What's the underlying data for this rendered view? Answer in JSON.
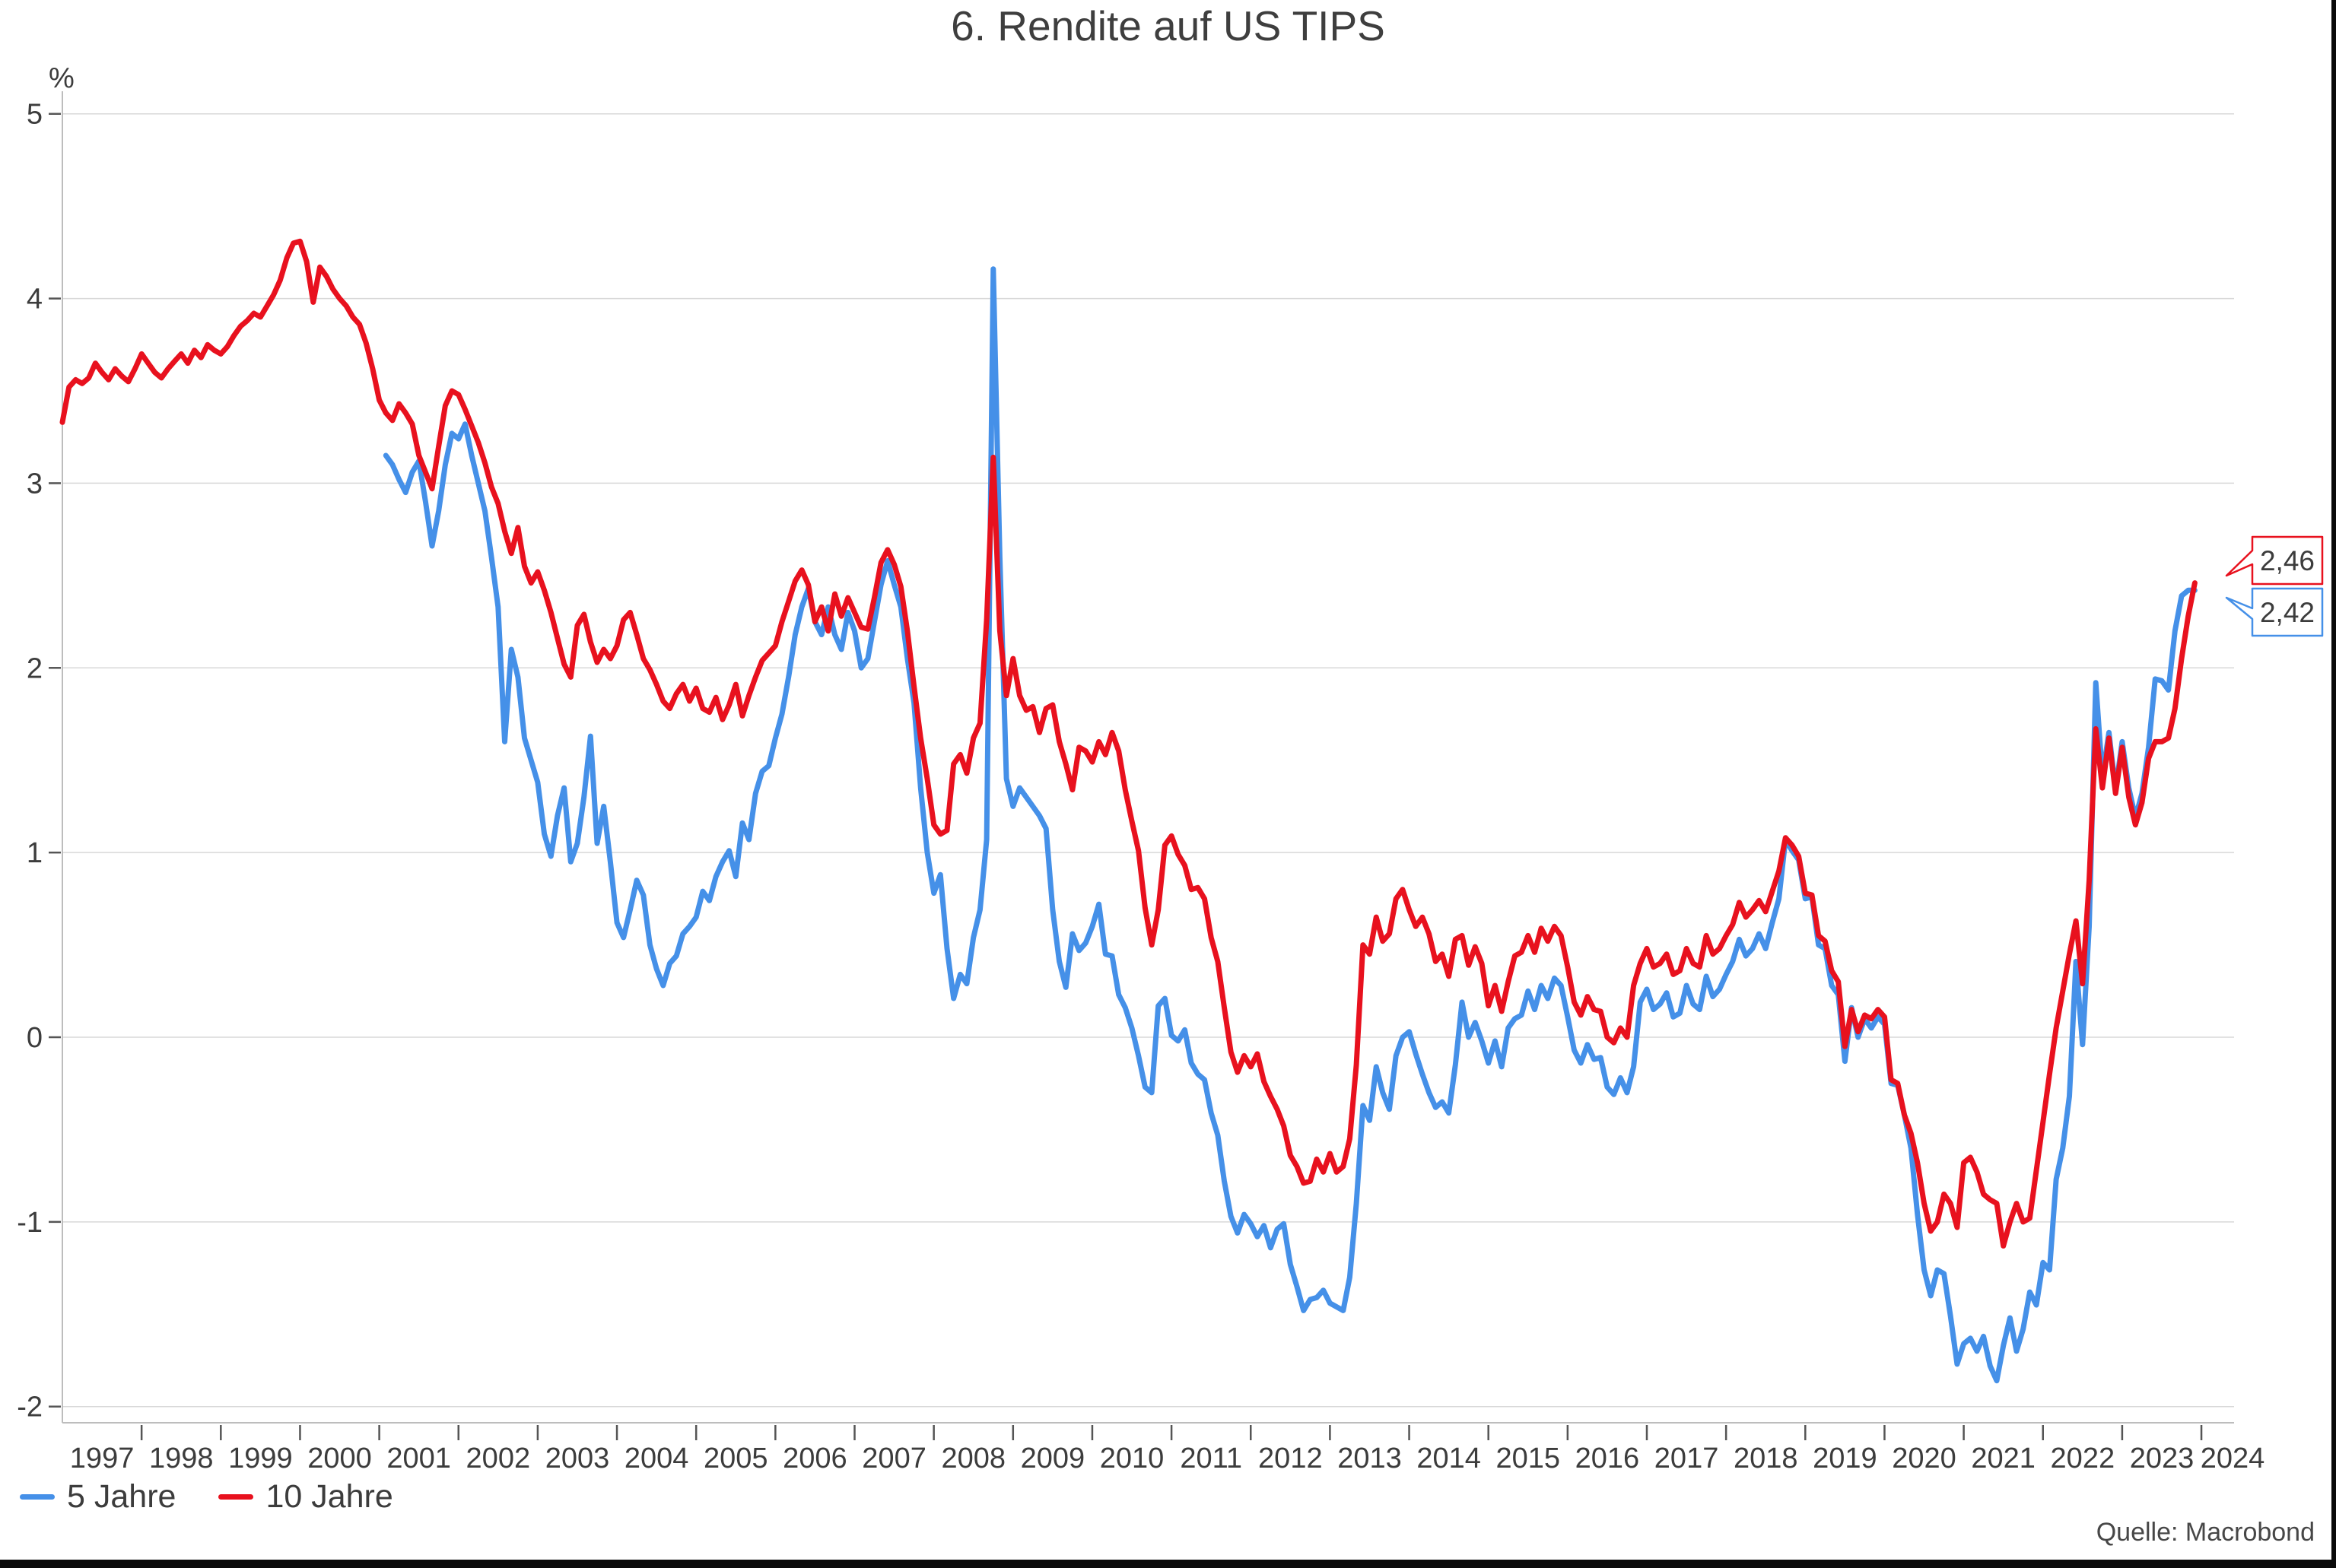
{
  "title": "6. Rendite auf US TIPS",
  "unit_label": "%",
  "source": "Quelle: Macrobond",
  "colors": {
    "blue": "#4590e8",
    "red": "#e8111e",
    "grid": "#d8d8d8",
    "axis": "#bdbdbd",
    "tick": "#555555",
    "text": "#3c3c3c"
  },
  "legend": {
    "items": [
      {
        "label": "5 Jahre",
        "color": "#4590e8"
      },
      {
        "label": "10 Jahre",
        "color": "#e8111e"
      }
    ]
  },
  "end_labels": [
    {
      "series": "10 Jahre",
      "text": "2,46",
      "color": "#e8111e"
    },
    {
      "series": "5 Jahre",
      "text": "2,42",
      "color": "#4590e8"
    }
  ],
  "chart_data": {
    "type": "line",
    "title": "6. Rendite auf US TIPS",
    "ylabel": "%",
    "ylim": [
      -2.1,
      5
    ],
    "xlim": [
      1997,
      2024.4
    ],
    "grid": "horizontal",
    "legend_position": "bottom-left",
    "y_ticks": [
      5,
      4,
      3,
      2,
      1,
      0,
      -1,
      -2
    ],
    "x_tick_years": [
      1997,
      1998,
      1999,
      2000,
      2001,
      2002,
      2003,
      2004,
      2005,
      2006,
      2007,
      2008,
      2009,
      2010,
      2011,
      2012,
      2013,
      2014,
      2015,
      2016,
      2017,
      2018,
      2019,
      2020,
      2021,
      2022,
      2023,
      2024
    ],
    "series": [
      {
        "name": "5 Jahre",
        "color": "#4590e8",
        "start_year": 2001,
        "start_month": 2,
        "end_value_label": "2,42",
        "monthly_values": [
          3.15,
          3.1,
          3.02,
          2.95,
          3.06,
          3.12,
          2.9,
          2.66,
          2.85,
          3.1,
          3.27,
          3.24,
          3.32,
          3.15,
          3.0,
          2.85,
          2.6,
          2.33,
          1.6,
          2.1,
          1.95,
          1.62,
          1.5,
          1.38,
          1.1,
          0.98,
          1.2,
          1.35,
          0.95,
          1.05,
          1.3,
          1.63,
          1.05,
          1.25,
          0.95,
          0.62,
          0.54,
          0.69,
          0.85,
          0.77,
          0.5,
          0.37,
          0.28,
          0.4,
          0.44,
          0.56,
          0.6,
          0.65,
          0.79,
          0.74,
          0.87,
          0.95,
          1.01,
          0.87,
          1.16,
          1.07,
          1.32,
          1.44,
          1.47,
          1.62,
          1.75,
          1.95,
          2.18,
          2.33,
          2.43,
          2.25,
          2.18,
          2.33,
          2.18,
          2.1,
          2.3,
          2.2,
          2.0,
          2.05,
          2.25,
          2.45,
          2.58,
          2.45,
          2.33,
          2.05,
          1.81,
          1.35,
          1.0,
          0.78,
          0.88,
          0.48,
          0.21,
          0.34,
          0.29,
          0.54,
          0.69,
          1.07,
          4.16,
          2.6,
          1.4,
          1.25,
          1.35,
          1.3,
          1.25,
          1.2,
          1.13,
          0.69,
          0.41,
          0.27,
          0.56,
          0.47,
          0.51,
          0.6,
          0.72,
          0.45,
          0.44,
          0.23,
          0.16,
          0.05,
          -0.1,
          -0.27,
          -0.3,
          0.17,
          0.21,
          0.01,
          -0.02,
          0.04,
          -0.14,
          -0.2,
          -0.23,
          -0.41,
          -0.53,
          -0.78,
          -0.97,
          -1.06,
          -0.96,
          -1.01,
          -1.08,
          -1.02,
          -1.14,
          -1.04,
          -1.01,
          -1.23,
          -1.35,
          -1.48,
          -1.42,
          -1.41,
          -1.37,
          -1.44,
          -1.46,
          -1.48,
          -1.3,
          -0.9,
          -0.37,
          -0.45,
          -0.16,
          -0.3,
          -0.39,
          -0.1,
          0.0,
          0.03,
          -0.09,
          -0.2,
          -0.3,
          -0.38,
          -0.35,
          -0.41,
          -0.15,
          0.19,
          0.0,
          0.08,
          -0.02,
          -0.14,
          -0.02,
          -0.16,
          0.05,
          0.1,
          0.12,
          0.25,
          0.15,
          0.28,
          0.21,
          0.32,
          0.28,
          0.11,
          -0.07,
          -0.14,
          -0.04,
          -0.12,
          -0.11,
          -0.27,
          -0.31,
          -0.22,
          -0.3,
          -0.16,
          0.19,
          0.26,
          0.15,
          0.18,
          0.24,
          0.11,
          0.13,
          0.28,
          0.18,
          0.15,
          0.33,
          0.22,
          0.26,
          0.34,
          0.41,
          0.53,
          0.44,
          0.48,
          0.56,
          0.48,
          0.62,
          0.75,
          1.07,
          1.01,
          0.96,
          0.75,
          0.76,
          0.5,
          0.48,
          0.28,
          0.23,
          -0.13,
          0.16,
          0.0,
          0.1,
          0.05,
          0.11,
          0.07,
          -0.25,
          -0.26,
          -0.42,
          -0.6,
          -0.96,
          -1.26,
          -1.4,
          -1.26,
          -1.28,
          -1.51,
          -1.77,
          -1.66,
          -1.63,
          -1.7,
          -1.62,
          -1.78,
          -1.86,
          -1.67,
          -1.52,
          -1.7,
          -1.58,
          -1.38,
          -1.45,
          -1.22,
          -1.26,
          -0.77,
          -0.6,
          -0.32,
          0.41,
          -0.04,
          0.6,
          1.92,
          1.41,
          1.65,
          1.34,
          1.6,
          1.35,
          1.19,
          1.32,
          1.57,
          1.94,
          1.93,
          1.88,
          2.2,
          2.39,
          2.42,
          2.42
        ]
      },
      {
        "name": "10 Jahre",
        "color": "#e8111e",
        "start_year": 1997,
        "start_month": 1,
        "end_value_label": "2,46",
        "monthly_values": [
          3.33,
          3.52,
          3.56,
          3.54,
          3.57,
          3.65,
          3.6,
          3.56,
          3.62,
          3.58,
          3.55,
          3.62,
          3.7,
          3.65,
          3.6,
          3.57,
          3.62,
          3.66,
          3.7,
          3.65,
          3.72,
          3.68,
          3.75,
          3.72,
          3.7,
          3.74,
          3.8,
          3.85,
          3.88,
          3.92,
          3.9,
          3.96,
          4.02,
          4.1,
          4.22,
          4.3,
          4.31,
          4.2,
          3.98,
          4.17,
          4.12,
          4.05,
          4.0,
          3.96,
          3.9,
          3.86,
          3.76,
          3.62,
          3.45,
          3.38,
          3.34,
          3.43,
          3.38,
          3.32,
          3.15,
          3.06,
          2.97,
          3.2,
          3.42,
          3.5,
          3.48,
          3.4,
          3.31,
          3.22,
          3.11,
          2.98,
          2.89,
          2.74,
          2.62,
          2.76,
          2.55,
          2.46,
          2.52,
          2.42,
          2.3,
          2.16,
          2.02,
          1.95,
          2.23,
          2.29,
          2.14,
          2.03,
          2.1,
          2.05,
          2.12,
          2.26,
          2.3,
          2.18,
          2.05,
          1.99,
          1.91,
          1.82,
          1.78,
          1.86,
          1.91,
          1.82,
          1.89,
          1.78,
          1.76,
          1.84,
          1.72,
          1.8,
          1.91,
          1.74,
          1.85,
          1.95,
          2.04,
          2.08,
          2.12,
          2.25,
          2.36,
          2.47,
          2.53,
          2.45,
          2.25,
          2.33,
          2.2,
          2.4,
          2.28,
          2.38,
          2.3,
          2.22,
          2.21,
          2.38,
          2.57,
          2.64,
          2.56,
          2.44,
          2.2,
          1.9,
          1.62,
          1.4,
          1.15,
          1.1,
          1.12,
          1.48,
          1.53,
          1.43,
          1.62,
          1.7,
          2.26,
          3.14,
          2.2,
          1.85,
          2.05,
          1.85,
          1.77,
          1.79,
          1.65,
          1.78,
          1.8,
          1.6,
          1.48,
          1.34,
          1.57,
          1.55,
          1.49,
          1.6,
          1.53,
          1.65,
          1.55,
          1.34,
          1.17,
          1.01,
          0.7,
          0.5,
          0.69,
          1.04,
          1.09,
          0.99,
          0.93,
          0.8,
          0.81,
          0.75,
          0.54,
          0.41,
          0.16,
          -0.08,
          -0.19,
          -0.1,
          -0.16,
          -0.09,
          -0.24,
          -0.32,
          -0.39,
          -0.48,
          -0.64,
          -0.7,
          -0.79,
          -0.78,
          -0.66,
          -0.73,
          -0.63,
          -0.73,
          -0.7,
          -0.55,
          -0.15,
          0.5,
          0.45,
          0.65,
          0.52,
          0.56,
          0.75,
          0.8,
          0.69,
          0.6,
          0.65,
          0.56,
          0.41,
          0.45,
          0.33,
          0.53,
          0.55,
          0.39,
          0.49,
          0.4,
          0.17,
          0.28,
          0.14,
          0.3,
          0.44,
          0.46,
          0.55,
          0.46,
          0.59,
          0.52,
          0.6,
          0.55,
          0.38,
          0.19,
          0.12,
          0.22,
          0.15,
          0.14,
          0.0,
          -0.03,
          0.05,
          0.0,
          0.28,
          0.4,
          0.48,
          0.38,
          0.4,
          0.45,
          0.34,
          0.36,
          0.48,
          0.4,
          0.38,
          0.55,
          0.45,
          0.48,
          0.55,
          0.61,
          0.73,
          0.65,
          0.69,
          0.74,
          0.68,
          0.79,
          0.9,
          1.08,
          1.04,
          0.98,
          0.78,
          0.77,
          0.55,
          0.52,
          0.36,
          0.3,
          -0.05,
          0.15,
          0.03,
          0.12,
          0.1,
          0.15,
          0.11,
          -0.23,
          -0.25,
          -0.42,
          -0.52,
          -0.68,
          -0.9,
          -1.05,
          -1.0,
          -0.85,
          -0.9,
          -1.03,
          -0.68,
          -0.65,
          -0.73,
          -0.85,
          -0.88,
          -0.9,
          -1.13,
          -1.0,
          -0.9,
          -1.0,
          -0.98,
          -0.72,
          -0.46,
          -0.2,
          0.05,
          0.25,
          0.45,
          0.63,
          0.29,
          0.85,
          1.67,
          1.35,
          1.62,
          1.32,
          1.57,
          1.3,
          1.15,
          1.27,
          1.51,
          1.6,
          1.6,
          1.62,
          1.78,
          2.05,
          2.28,
          2.46
        ]
      }
    ]
  }
}
